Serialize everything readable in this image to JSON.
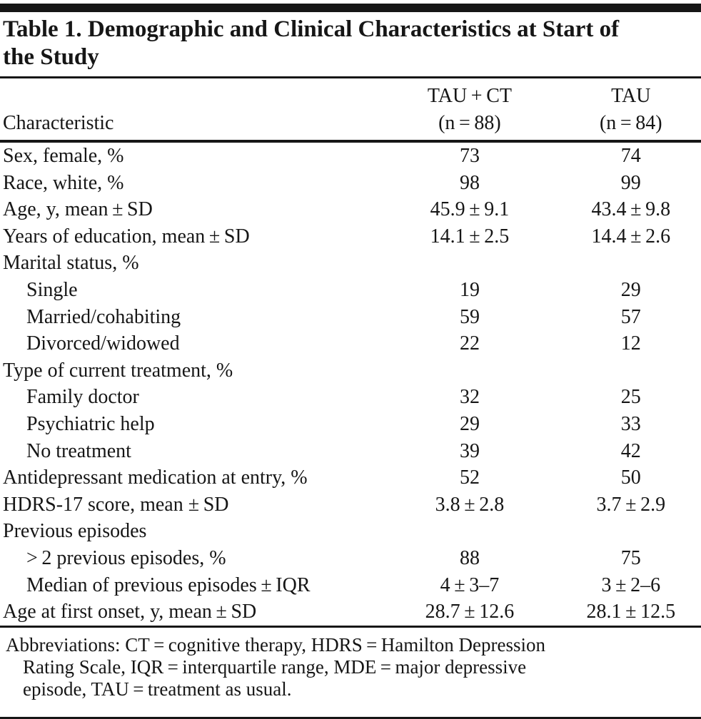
{
  "colors": {
    "text": "#161616",
    "rule": "#161616",
    "background": "#ffffff"
  },
  "header": {
    "title_line1": "Table 1. Demographic and Clinical Characteristics at Start of",
    "title_line2": "the Study"
  },
  "table": {
    "type": "table",
    "header": {
      "characteristic": "Characteristic",
      "col2_line1": "TAU + CT",
      "col2_line2": "(n = 88)",
      "col3_line1": "TAU",
      "col3_line2": "(n = 84)"
    },
    "rows": [
      {
        "label": "Sex, female, %",
        "indent": false,
        "v1": "73",
        "v2": "74"
      },
      {
        "label": "Race, white, %",
        "indent": false,
        "v1": "98",
        "v2": "99"
      },
      {
        "label": "Age, y, mean ± SD",
        "indent": false,
        "v1": "45.9 ± 9.1",
        "v2": "43.4 ± 9.8"
      },
      {
        "label": "Years of education, mean ± SD",
        "indent": false,
        "v1": "14.1 ± 2.5",
        "v2": "14.4 ± 2.6"
      },
      {
        "label": "Marital status, %",
        "indent": false,
        "v1": "",
        "v2": ""
      },
      {
        "label": "Single",
        "indent": true,
        "v1": "19",
        "v2": "29"
      },
      {
        "label": "Married/cohabiting",
        "indent": true,
        "v1": "59",
        "v2": "57"
      },
      {
        "label": "Divorced/widowed",
        "indent": true,
        "v1": "22",
        "v2": "12"
      },
      {
        "label": "Type of current treatment, %",
        "indent": false,
        "v1": "",
        "v2": ""
      },
      {
        "label": "Family doctor",
        "indent": true,
        "v1": "32",
        "v2": "25"
      },
      {
        "label": "Psychiatric help",
        "indent": true,
        "v1": "29",
        "v2": "33"
      },
      {
        "label": "No treatment",
        "indent": true,
        "v1": "39",
        "v2": "42"
      },
      {
        "label": "Antidepressant medication at entry, %",
        "indent": false,
        "v1": "52",
        "v2": "50"
      },
      {
        "label": "HDRS-17 score, mean ± SD",
        "indent": false,
        "v1": "3.8 ± 2.8",
        "v2": "3.7 ± 2.9"
      },
      {
        "label": "Previous episodes",
        "indent": false,
        "v1": "",
        "v2": ""
      },
      {
        "label": "> 2 previous episodes, %",
        "indent": true,
        "v1": "88",
        "v2": "75"
      },
      {
        "label": "Median of previous episodes ± IQR",
        "indent": true,
        "v1": "4 ± 3–7",
        "v2": "3 ± 2–6"
      },
      {
        "label": "Age at first onset, y, mean ± SD",
        "indent": false,
        "v1": "28.7 ± 12.6",
        "v2": "28.1 ± 12.5"
      }
    ]
  },
  "footnote": {
    "lines": [
      "Abbreviations: CT = cognitive therapy, HDRS = Hamilton Depression",
      "Rating Scale, IQR = interquartile range, MDE = major depressive",
      "episode, TAU = treatment as usual."
    ]
  }
}
